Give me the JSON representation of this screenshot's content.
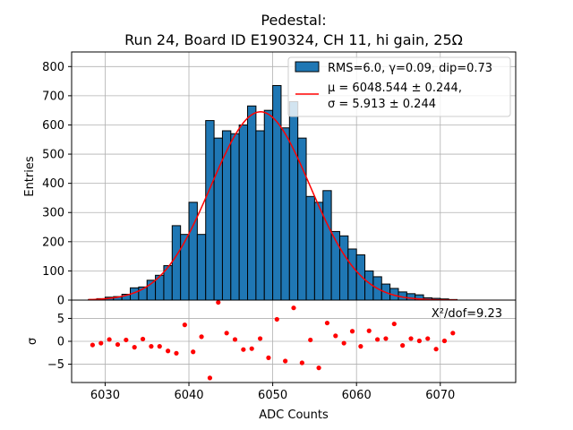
{
  "chart_data": [
    {
      "type": "bar",
      "title_line1": "Pedestal:",
      "title_line2": "Run 24, Board ID E190324, CH 11, hi gain, 25Ω",
      "ylabel": "Entries",
      "ylim": [
        0,
        850
      ],
      "xlim": [
        6026,
        6079
      ],
      "grid": true,
      "yticks": [
        "0",
        "100",
        "200",
        "300",
        "400",
        "500",
        "600",
        "700",
        "800"
      ],
      "bin_width": 1,
      "bins_start": 6028,
      "counts": [
        2,
        5,
        10,
        12,
        20,
        42,
        45,
        68,
        85,
        118,
        255,
        225,
        335,
        225,
        615,
        555,
        580,
        570,
        600,
        665,
        580,
        650,
        735,
        590,
        680,
        555,
        355,
        335,
        375,
        235,
        220,
        175,
        155,
        100,
        80,
        55,
        40,
        28,
        22,
        18,
        8,
        6,
        4,
        2
      ],
      "legend": {
        "position": "top-right",
        "bar_label": "RMS=6.0, γ=0.09, dip=0.73",
        "fit_label_line1": "μ = 6048.544 ± 0.244,",
        "fit_label_line2": "σ = 5.913 ± 0.244"
      },
      "colors": {
        "bar": "#1f77b4",
        "fit": "#ff0000",
        "grid": "#b0b0b0"
      },
      "fit": {
        "type": "gaussian",
        "mu": 6048.544,
        "sigma": 5.913,
        "amplitude": 645
      }
    },
    {
      "type": "scatter",
      "ylabel": "σ",
      "xlabel": "ADC Counts",
      "ylim": [
        -9,
        9
      ],
      "yticks": [
        "5",
        "0",
        "−5"
      ],
      "xticks": [
        "6030",
        "6040",
        "6050",
        "6060",
        "6070"
      ],
      "annotation": "X²/dof=9.23",
      "color": "#ff0000",
      "points": {
        "x": [
          6028.5,
          6029.5,
          6030.5,
          6031.5,
          6032.5,
          6033.5,
          6034.5,
          6035.5,
          6036.5,
          6037.5,
          6038.5,
          6039.5,
          6040.5,
          6041.5,
          6042.5,
          6043.5,
          6044.5,
          6045.5,
          6046.5,
          6047.5,
          6048.5,
          6049.5,
          6050.5,
          6051.5,
          6052.5,
          6053.5,
          6054.5,
          6055.5,
          6056.5,
          6057.5,
          6058.5,
          6059.5,
          6060.5,
          6061.5,
          6062.5,
          6063.5,
          6064.5,
          6065.5,
          6066.5,
          6067.5,
          6068.5,
          6069.5,
          6070.5,
          6071.5
        ],
        "y": [
          -0.8,
          -0.4,
          0.4,
          -0.7,
          0.3,
          -1.3,
          0.5,
          -1.1,
          -1.1,
          -2.1,
          -2.6,
          3.6,
          -2.3,
          1.0,
          -8.0,
          8.5,
          1.8,
          0.4,
          -1.8,
          -1.6,
          0.6,
          -3.6,
          4.8,
          -4.3,
          7.3,
          -4.7,
          0.3,
          -5.8,
          4.0,
          1.2,
          -0.4,
          2.2,
          -1.1,
          2.3,
          0.4,
          0.6,
          3.8,
          -0.9,
          0.6,
          0.1,
          0.6,
          -1.7,
          0.1,
          1.8
        ]
      }
    }
  ]
}
